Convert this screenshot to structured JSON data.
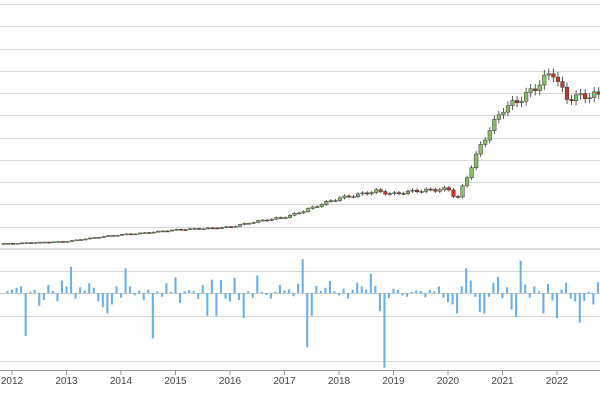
{
  "chart_data": [
    {
      "type": "candlestick",
      "panel": "price",
      "grid": true,
      "frequency": "monthly",
      "colors": {
        "up": "#8cbf6a",
        "down": "#c0392b",
        "wick": "#333333",
        "grid": "#d9d9d9"
      },
      "ylim": [
        0,
        220
      ],
      "series": [
        {
          "name": "",
          "anchors": [
            {
              "x": "2012-01-01",
              "close": 5
            },
            {
              "x": "2013-01-01",
              "close": 7
            },
            {
              "x": "2014-01-01",
              "close": 13
            },
            {
              "x": "2015-01-01",
              "close": 17
            },
            {
              "x": "2016-01-01",
              "close": 20
            },
            {
              "x": "2017-01-01",
              "close": 29
            },
            {
              "x": "2018-01-01",
              "close": 45
            },
            {
              "x": "2018-09-01",
              "close": 53
            },
            {
              "x": "2019-01-01",
              "close": 49
            },
            {
              "x": "2020-01-01",
              "close": 55
            },
            {
              "x": "2020-03-01",
              "close": 45
            },
            {
              "x": "2020-08-01",
              "close": 90
            },
            {
              "x": "2021-01-01",
              "close": 125
            },
            {
              "x": "2021-06-01",
              "close": 140
            },
            {
              "x": "2021-12-01",
              "close": 158
            },
            {
              "x": "2022-03-01",
              "close": 133
            },
            {
              "x": "2022-09-01",
              "close": 140
            }
          ]
        }
      ]
    },
    {
      "type": "bar",
      "panel": "change",
      "frequency": "monthly",
      "colors": {
        "bar": "#6aaee6",
        "baseline": "#cccccc"
      },
      "ylim": [
        -17,
        8
      ],
      "series": [
        {
          "name": "",
          "start": "2011-12-01",
          "values": [
            0.5,
            0.8,
            1.2,
            1.5,
            -9.5,
            0.3,
            0.7,
            -2.8,
            -1.5,
            1.8,
            0.5,
            -1.8,
            2.8,
            1.5,
            5.8,
            -1.2,
            1.3,
            0.6,
            2.2,
            1.2,
            -1.8,
            -3.1,
            -4.5,
            -2.5,
            1.5,
            -1.0,
            5.5,
            1.5,
            -0.5,
            0.6,
            -1.5,
            0.8,
            -10.0,
            0.4,
            -0.8,
            2.2,
            0.3,
            3.5,
            -2.2,
            0.4,
            0.7,
            0.5,
            -1.3,
            1.8,
            -5.0,
            3.0,
            -5.0,
            2.9,
            -1.2,
            -1.8,
            3.4,
            -1.5,
            -5.5,
            0.4,
            -1.0,
            3.9,
            0.3,
            -0.4,
            -1.2,
            0.3,
            1.8,
            0.6,
            0.8,
            -0.7,
            2.1,
            7.5,
            -12.0,
            -5.0,
            1.6,
            0.5,
            1.2,
            2.7,
            0.4,
            -0.5,
            1.0,
            -1.2,
            0.7,
            2.3,
            1.5,
            0.8,
            4.3,
            1.6,
            -4.0,
            -16.5,
            -1.1,
            1.0,
            0.7,
            -0.5,
            -0.8,
            0.3,
            0.6,
            0.5,
            -0.9,
            0.7,
            0.4,
            1.5,
            -1.0,
            -2.0,
            -2.5,
            -4.5,
            1.5,
            5.5,
            2.8,
            -0.8,
            -4.2,
            -4.5,
            -0.8,
            2.3,
            3.6,
            -1.1,
            1.3,
            -3.6,
            -5.3,
            7.2,
            1.9,
            -1.0,
            1.5,
            0.4,
            -4.5,
            2.0,
            -1.6,
            -5.5,
            0.8,
            2.3,
            -1.2,
            -1.8,
            -6.5,
            -1.7,
            0.3,
            -2.5,
            2.4,
            -3.5,
            -2.2,
            0.6,
            0.5,
            0.4,
            0.8,
            1.6,
            0.6,
            0.6,
            0.9
          ]
        }
      ]
    }
  ],
  "x_axis": {
    "tick_labels": [
      "2012",
      "2013",
      "2014",
      "2015",
      "2016",
      "2017",
      "2018",
      "2019",
      "2020",
      "2021",
      "2022"
    ]
  }
}
